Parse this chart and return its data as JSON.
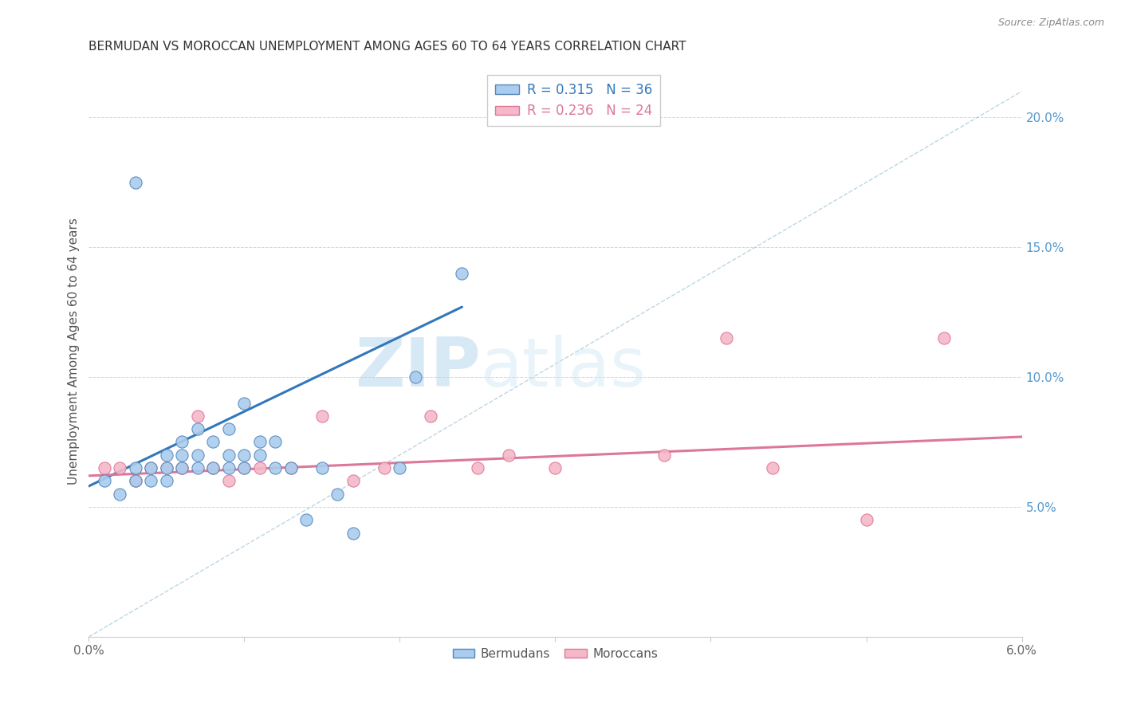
{
  "title": "BERMUDAN VS MOROCCAN UNEMPLOYMENT AMONG AGES 60 TO 64 YEARS CORRELATION CHART",
  "source": "Source: ZipAtlas.com",
  "ylabel": "Unemployment Among Ages 60 to 64 years",
  "xlim": [
    0.0,
    0.06
  ],
  "ylim": [
    0.0,
    0.22
  ],
  "right_yticks": [
    0.05,
    0.1,
    0.15,
    0.2
  ],
  "right_yticklabels": [
    "5.0%",
    "10.0%",
    "15.0%",
    "20.0%"
  ],
  "xticks": [
    0.0,
    0.01,
    0.02,
    0.03,
    0.04,
    0.05,
    0.06
  ],
  "xticklabels": [
    "0.0%",
    "",
    "",
    "",
    "",
    "",
    "6.0%"
  ],
  "legend_bermudan_r": "R = 0.315",
  "legend_bermudan_n": "N = 36",
  "legend_moroccan_r": "R = 0.236",
  "legend_moroccan_n": "N = 24",
  "blue_color": "#aaccee",
  "blue_edge": "#5588bb",
  "pink_color": "#f5b8c8",
  "pink_edge": "#dd7799",
  "blue_scatter_x": [
    0.001,
    0.002,
    0.003,
    0.003,
    0.004,
    0.004,
    0.005,
    0.005,
    0.005,
    0.006,
    0.006,
    0.006,
    0.007,
    0.007,
    0.007,
    0.008,
    0.008,
    0.009,
    0.009,
    0.009,
    0.01,
    0.01,
    0.01,
    0.011,
    0.011,
    0.012,
    0.012,
    0.013,
    0.014,
    0.015,
    0.016,
    0.017,
    0.02,
    0.021,
    0.024,
    0.003
  ],
  "blue_scatter_y": [
    0.06,
    0.055,
    0.06,
    0.065,
    0.06,
    0.065,
    0.06,
    0.065,
    0.07,
    0.065,
    0.07,
    0.075,
    0.065,
    0.07,
    0.08,
    0.065,
    0.075,
    0.065,
    0.07,
    0.08,
    0.065,
    0.07,
    0.09,
    0.07,
    0.075,
    0.065,
    0.075,
    0.065,
    0.045,
    0.065,
    0.055,
    0.04,
    0.065,
    0.1,
    0.14,
    0.175
  ],
  "pink_scatter_x": [
    0.001,
    0.002,
    0.003,
    0.004,
    0.005,
    0.006,
    0.007,
    0.008,
    0.009,
    0.01,
    0.011,
    0.013,
    0.015,
    0.017,
    0.019,
    0.022,
    0.025,
    0.027,
    0.03,
    0.037,
    0.041,
    0.044,
    0.05,
    0.055
  ],
  "pink_scatter_y": [
    0.065,
    0.065,
    0.06,
    0.065,
    0.065,
    0.065,
    0.085,
    0.065,
    0.06,
    0.065,
    0.065,
    0.065,
    0.085,
    0.06,
    0.065,
    0.085,
    0.065,
    0.07,
    0.065,
    0.07,
    0.115,
    0.065,
    0.045,
    0.115
  ],
  "blue_trend_x": [
    0.0,
    0.024
  ],
  "blue_trend_y": [
    0.058,
    0.127
  ],
  "pink_trend_x": [
    0.0,
    0.06
  ],
  "pink_trend_y": [
    0.062,
    0.077
  ],
  "ref_line_x": [
    0.0,
    0.06
  ],
  "ref_line_y": [
    0.0,
    0.21
  ],
  "watermark_zip": "ZIP",
  "watermark_atlas": "atlas",
  "background_color": "#ffffff",
  "grid_color": "#cccccc"
}
